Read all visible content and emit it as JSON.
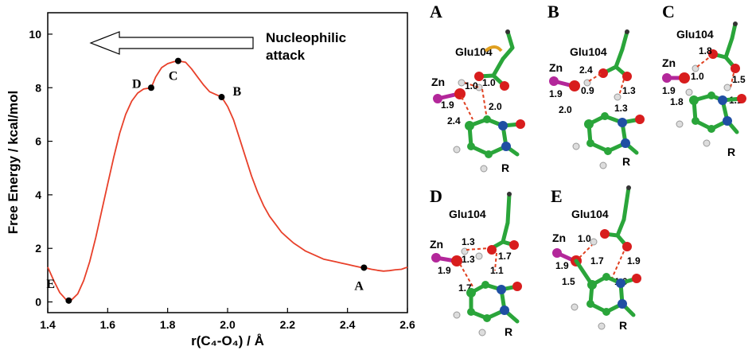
{
  "chart_data": {
    "type": "line",
    "title": "",
    "xlabel": "r(C₄-O₄) / Å",
    "ylabel": "Free Energy / kcal/mol",
    "xlim": [
      1.4,
      2.6
    ],
    "ylim": [
      -0.4,
      10.8
    ],
    "xticks": [
      "1.4",
      "1.6",
      "1.8",
      "2.0",
      "2.2",
      "2.4",
      "2.6"
    ],
    "yticks": [
      "0",
      "2",
      "4",
      "6",
      "8",
      "10"
    ],
    "grid": false,
    "series": [
      {
        "color": "#e8402a",
        "x": [
          1.4,
          1.42,
          1.44,
          1.46,
          1.47,
          1.48,
          1.5,
          1.52,
          1.54,
          1.56,
          1.58,
          1.6,
          1.62,
          1.64,
          1.66,
          1.68,
          1.7,
          1.72,
          1.745,
          1.76,
          1.78,
          1.8,
          1.82,
          1.835,
          1.86,
          1.88,
          1.9,
          1.92,
          1.94,
          1.96,
          1.98,
          2.0,
          2.02,
          2.04,
          2.06,
          2.08,
          2.1,
          2.12,
          2.14,
          2.16,
          2.18,
          2.2,
          2.22,
          2.24,
          2.26,
          2.28,
          2.3,
          2.32,
          2.34,
          2.36,
          2.38,
          2.4,
          2.42,
          2.44,
          2.455,
          2.48,
          2.5,
          2.52,
          2.54,
          2.56,
          2.58,
          2.6
        ],
        "y": [
          1.3,
          0.8,
          0.35,
          0.1,
          0.05,
          0.08,
          0.3,
          0.8,
          1.5,
          2.4,
          3.4,
          4.4,
          5.4,
          6.3,
          7.0,
          7.5,
          7.8,
          7.95,
          8.0,
          8.4,
          8.75,
          8.9,
          8.97,
          9.0,
          8.95,
          8.7,
          8.4,
          8.1,
          7.85,
          7.75,
          7.65,
          7.3,
          6.8,
          6.1,
          5.4,
          4.7,
          4.1,
          3.6,
          3.2,
          2.9,
          2.6,
          2.4,
          2.2,
          2.05,
          1.9,
          1.8,
          1.7,
          1.6,
          1.55,
          1.5,
          1.45,
          1.4,
          1.35,
          1.3,
          1.28,
          1.22,
          1.18,
          1.15,
          1.17,
          1.2,
          1.22,
          1.3
        ]
      }
    ],
    "points": [
      {
        "label": "A",
        "x": 2.455,
        "y": 1.28
      },
      {
        "label": "B",
        "x": 1.98,
        "y": 7.65
      },
      {
        "label": "C",
        "x": 1.835,
        "y": 9.0
      },
      {
        "label": "D",
        "x": 1.745,
        "y": 8.0
      },
      {
        "label": "E",
        "x": 1.47,
        "y": 0.05
      }
    ],
    "annotation": {
      "line1": "Nucleophilic",
      "line2": "attack"
    }
  },
  "colors": {
    "curve": "#e8402a",
    "carbon": "#2aa53a",
    "nitrogen": "#1f4fa3",
    "oxygen": "#d81d1d",
    "zinc": "#b3279a",
    "hydrogen": "#dddddd",
    "hbond": "#e04020"
  },
  "panels": [
    {
      "label": "A",
      "residue": "Glu104",
      "zn": "Zn",
      "r": "R",
      "distances": [
        "1.0",
        "1.0",
        "1.9",
        "2.0",
        "2.4"
      ]
    },
    {
      "label": "B",
      "residue": "Glu104",
      "zn": "Zn",
      "r": "R",
      "distances": [
        "2.4",
        "0.9",
        "1.3",
        "1.9",
        "2.0",
        "1.3"
      ]
    },
    {
      "label": "C",
      "residue": "Glu104",
      "zn": "Zn",
      "r": "R",
      "distances": [
        "1.8",
        "1.0",
        "1.9",
        "1.5",
        "1.8",
        "1.1"
      ]
    },
    {
      "label": "D",
      "residue": "Glu104",
      "zn": "Zn",
      "r": "R",
      "distances": [
        "1.3",
        "1.3",
        "1.7",
        "1.9",
        "1.1",
        "1.7"
      ]
    },
    {
      "label": "E",
      "residue": "Glu104",
      "zn": "Zn",
      "r": "R",
      "distances": [
        "1.0",
        "1.7",
        "1.9",
        "1.9",
        "1.5",
        "1.0"
      ]
    }
  ]
}
